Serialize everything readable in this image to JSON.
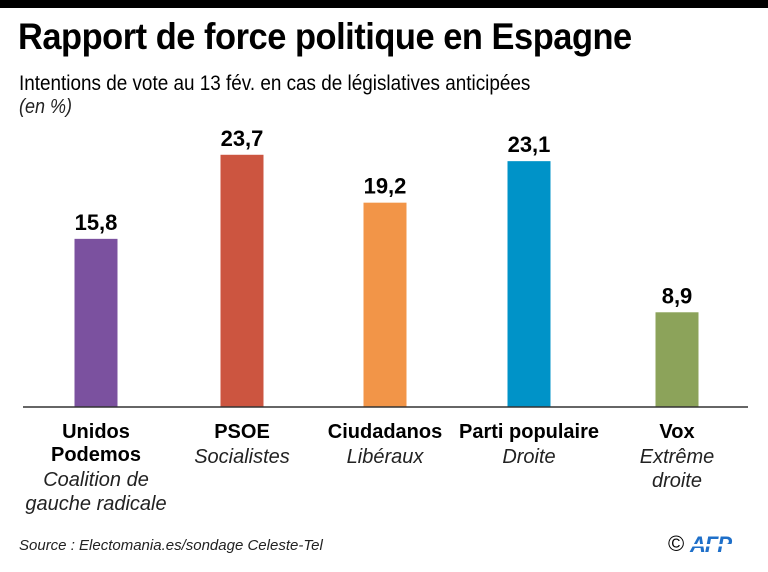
{
  "header": {
    "title": "Rapport de force politique en Espagne",
    "subtitle": "Intentions de vote au 13 fév. en cas de législatives anticipées",
    "unit": "(en %)"
  },
  "chart_data": {
    "type": "bar",
    "title": "Rapport de force politique en Espagne",
    "subtitle": "Intentions de vote au 13 fév. en cas de législatives anticipées",
    "xlabel": "",
    "ylabel": "(en %)",
    "ylim": [
      0,
      25
    ],
    "grid": false,
    "categories": [
      "Unidos Podemos",
      "PSOE",
      "Ciudadanos",
      "Parti populaire",
      "Vox"
    ],
    "values": [
      15.8,
      23.7,
      19.2,
      23.1,
      8.9
    ],
    "value_labels": [
      "15,8",
      "23,7",
      "19,2",
      "23,1",
      "8,9"
    ],
    "category_lines": [
      [
        "Unidos",
        "Podemos"
      ],
      [
        "PSOE"
      ],
      [
        "Ciudadanos"
      ],
      [
        "Parti populaire"
      ],
      [
        "Vox"
      ]
    ],
    "descriptions": [
      [
        "Coalition de",
        "gauche radicale"
      ],
      [
        "Socialistes"
      ],
      [
        "Libéraux"
      ],
      [
        "Droite"
      ],
      [
        "Extrême",
        "droite"
      ]
    ],
    "colors": [
      "#7b519f",
      "#cc5540",
      "#f29548",
      "#0093c8",
      "#8ca35a"
    ]
  },
  "footer": {
    "source": "Source : Electomania.es/sondage Celeste-Tel",
    "copyright": "©",
    "agency": "AFP",
    "agency_color": "#1e6fc9"
  }
}
